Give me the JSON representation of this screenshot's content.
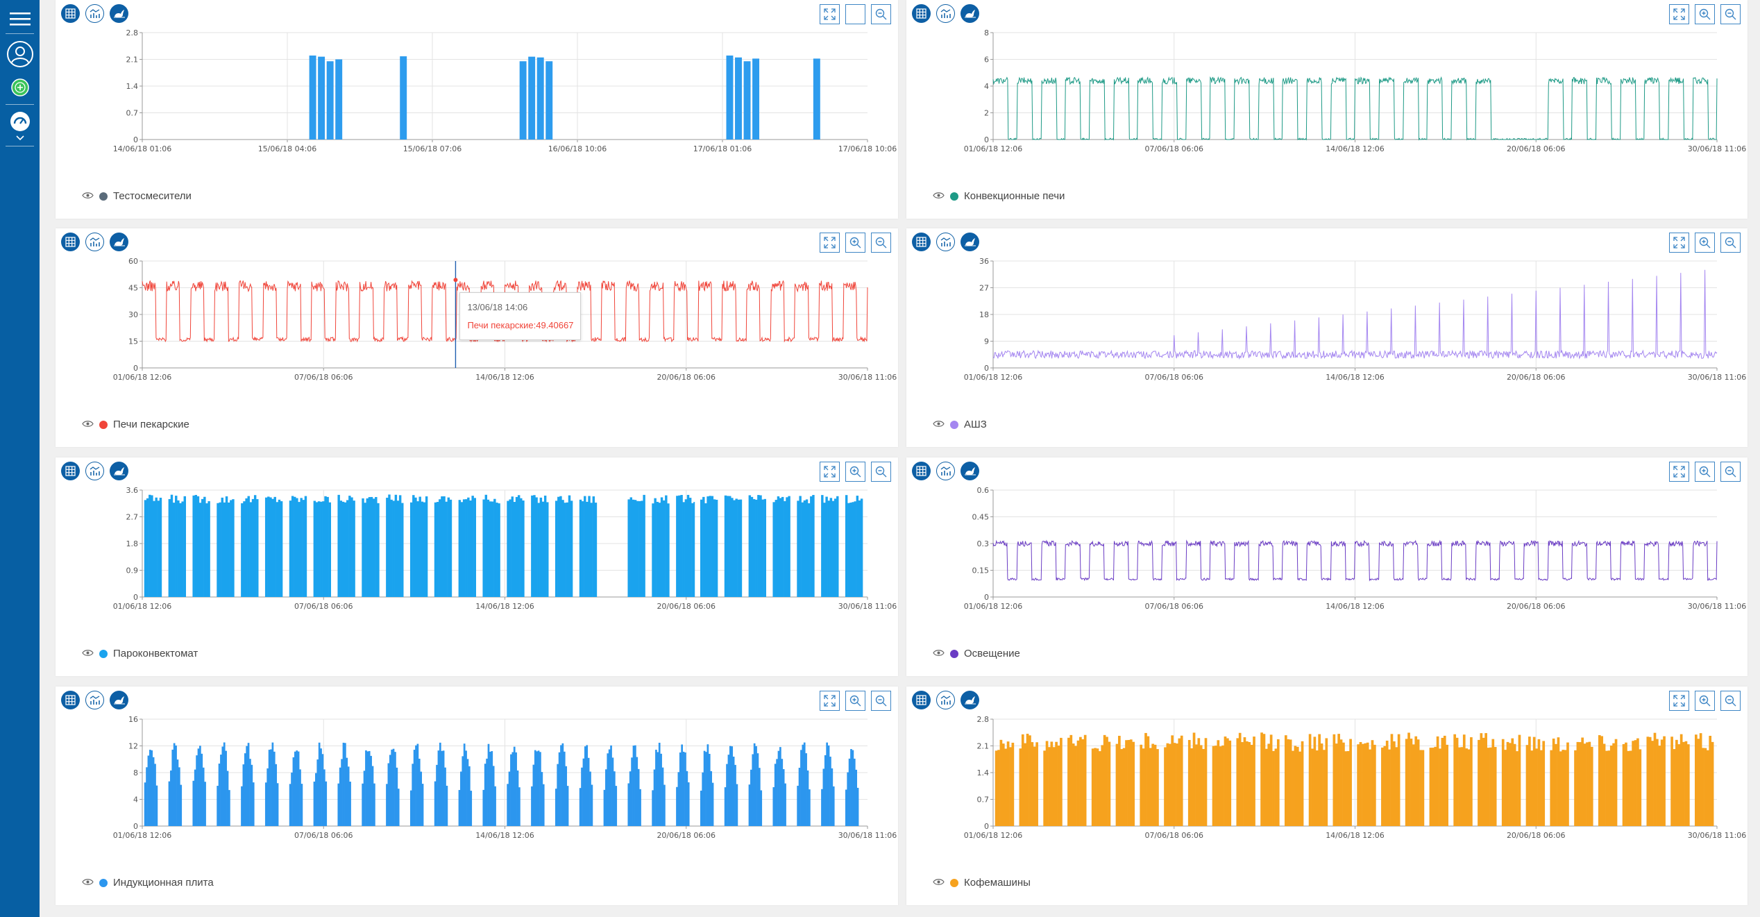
{
  "sidebar": {
    "menu_icon": "hamburger-menu-icon",
    "profile_icon": "user-avatar-icon",
    "add_icon": "add-circle-icon",
    "dashboard_icon": "gauge-icon",
    "expand_icon": "chevron-down-icon"
  },
  "toolbar_icons": [
    "grid-icon",
    "chart-type-icon",
    "rabbit-icon",
    "fullscreen-icon",
    "zoom-in-icon",
    "zoom-out-icon"
  ],
  "panels": [
    {
      "id": "p1",
      "legend": "Тестосмесители",
      "color": "#5a6b7a",
      "chart_data": {
        "type": "bar",
        "title": "",
        "xlabel": "",
        "ylabel": "",
        "ylim": [
          0,
          2.8
        ],
        "yticks": [
          "0",
          "0.7",
          "1.4",
          "2.1",
          "2.8"
        ],
        "xticks": [
          "14/06/18 01:06",
          "15/06/18 04:06",
          "15/06/18 07:06",
          "16/06/18 10:06",
          "17/06/18 01:06",
          "17/06/18 10:06"
        ],
        "color": "#2d9cee",
        "bars": [
          {
            "at": 0.235,
            "value": 2.2
          },
          {
            "at": 0.247,
            "value": 2.17
          },
          {
            "at": 0.259,
            "value": 2.05
          },
          {
            "at": 0.271,
            "value": 2.1
          },
          {
            "at": 0.36,
            "value": 2.18
          },
          {
            "at": 0.525,
            "value": 2.05
          },
          {
            "at": 0.537,
            "value": 2.17
          },
          {
            "at": 0.549,
            "value": 2.15
          },
          {
            "at": 0.561,
            "value": 2.05
          },
          {
            "at": 0.81,
            "value": 2.2
          },
          {
            "at": 0.822,
            "value": 2.15
          },
          {
            "at": 0.834,
            "value": 2.05
          },
          {
            "at": 0.846,
            "value": 2.12
          },
          {
            "at": 0.93,
            "value": 2.12
          }
        ]
      },
      "show_tooltip": false
    },
    {
      "id": "p2",
      "legend": "Конвекционные печи",
      "color": "#1e9a86",
      "chart_data": {
        "type": "line",
        "title": "",
        "xlabel": "",
        "ylabel": "",
        "ylim": [
          0,
          8
        ],
        "yticks": [
          "0",
          "2",
          "4",
          "6",
          "8"
        ],
        "xticks": [
          "01/06/18 12:06",
          "07/06/18 06:06",
          "14/06/18 12:06",
          "20/06/18 06:06",
          "30/06/18 11:06"
        ],
        "color": "#1e9a86",
        "pattern": {
          "cycles": 30,
          "base": 0.0,
          "high": 4.4,
          "duty": 0.62,
          "gaps": [
            [
              0.7,
              0.755
            ]
          ],
          "noise": 0.5
        }
      },
      "show_tooltip": false
    },
    {
      "id": "p3",
      "legend": "Печи пекарские",
      "color": "#f0453a",
      "chart_data": {
        "type": "line",
        "title": "",
        "xlabel": "",
        "ylabel": "",
        "ylim": [
          0,
          60
        ],
        "yticks": [
          "0",
          "15",
          "30",
          "45",
          "60"
        ],
        "xticks": [
          "01/06/18 12:06",
          "07/06/18 06:06",
          "14/06/18 12:06",
          "20/06/18 06:06",
          "30/06/18 11:06"
        ],
        "color": "#f0453a",
        "pattern": {
          "cycles": 30,
          "base": 16,
          "high": 46,
          "duty": 0.55,
          "gaps": [],
          "noise": 6
        }
      },
      "show_tooltip": true,
      "tooltip": {
        "time": "13/06/18 14:06",
        "label": "Печи пекарские:",
        "value": "49.40667",
        "cursor_x": 0.432
      }
    },
    {
      "id": "p4",
      "legend": "АШЗ",
      "color": "#a486f0",
      "chart_data": {
        "type": "line",
        "title": "",
        "xlabel": "",
        "ylabel": "",
        "ylim": [
          0,
          36
        ],
        "yticks": [
          "0",
          "9",
          "18",
          "27",
          "36"
        ],
        "xticks": [
          "01/06/18 12:06",
          "07/06/18 06:06",
          "14/06/18 12:06",
          "20/06/18 06:06",
          "30/06/18 11:06"
        ],
        "color": "#a486f0",
        "pattern": {
          "kind": "spikes",
          "cycles": 30,
          "base": 4.5,
          "spike_start": 4,
          "spike_end": 34,
          "noise": 1.3
        }
      },
      "show_tooltip": false
    },
    {
      "id": "p5",
      "legend": "Пароконвектомат",
      "color": "#1aa3ee",
      "chart_data": {
        "type": "bar",
        "title": "",
        "xlabel": "",
        "ylabel": "",
        "ylim": [
          0,
          3.6
        ],
        "yticks": [
          "0",
          "0.9",
          "1.8",
          "2.7",
          "3.6"
        ],
        "xticks": [
          "01/06/18 12:06",
          "07/06/18 06:06",
          "14/06/18 12:06",
          "20/06/18 06:06",
          "30/06/18 11:06"
        ],
        "color": "#1aa3ee",
        "pattern": {
          "kind": "blocks",
          "cycles": 30,
          "high": 3.3,
          "duty": 0.72,
          "gaps": [
            [
              0.63,
              0.665
            ]
          ],
          "noise": 0.15
        }
      },
      "show_tooltip": false
    },
    {
      "id": "p6",
      "legend": "Освещение",
      "color": "#6a3cc4",
      "chart_data": {
        "type": "line",
        "title": "",
        "xlabel": "",
        "ylabel": "",
        "ylim": [
          0,
          0.6
        ],
        "yticks": [
          "0",
          "0.15",
          "0.3",
          "0.45",
          "0.6"
        ],
        "xticks": [
          "01/06/18 12:06",
          "07/06/18 06:06",
          "14/06/18 12:06",
          "20/06/18 06:06",
          "30/06/18 11:06"
        ],
        "color": "#6a3cc4",
        "pattern": {
          "cycles": 30,
          "base": 0.1,
          "high": 0.3,
          "duty": 0.6,
          "gaps": [],
          "noise": 0.03
        }
      },
      "show_tooltip": false
    },
    {
      "id": "p7",
      "legend": "Индукционная плита",
      "color": "#2c96ee",
      "chart_data": {
        "type": "bar",
        "title": "",
        "xlabel": "",
        "ylabel": "",
        "ylim": [
          0,
          16
        ],
        "yticks": [
          "0",
          "4",
          "8",
          "12",
          "16"
        ],
        "xticks": [
          "01/06/18 12:06",
          "07/06/18 06:06",
          "14/06/18 12:06",
          "20/06/18 06:06",
          "30/06/18 11:06"
        ],
        "color": "#2c96ee",
        "pattern": {
          "kind": "humps",
          "cycles": 30,
          "high": 11.5,
          "duty": 0.55,
          "noise": 1.5
        }
      },
      "show_tooltip": false
    },
    {
      "id": "p8",
      "legend": "Кофемашины",
      "color": "#f6a21e",
      "chart_data": {
        "type": "bar",
        "title": "",
        "xlabel": "",
        "ylabel": "",
        "ylim": [
          0,
          2.8
        ],
        "yticks": [
          "0",
          "0.7",
          "1.4",
          "2.1",
          "2.8"
        ],
        "xticks": [
          "01/06/18 12:06",
          "07/06/18 06:06",
          "14/06/18 12:06",
          "20/06/18 06:06",
          "30/06/18 11:06"
        ],
        "color": "#f6a21e",
        "pattern": {
          "kind": "blocks",
          "cycles": 30,
          "high": 2.2,
          "duty": 0.78,
          "gaps": [],
          "noise": 0.25
        }
      },
      "show_tooltip": false
    }
  ]
}
